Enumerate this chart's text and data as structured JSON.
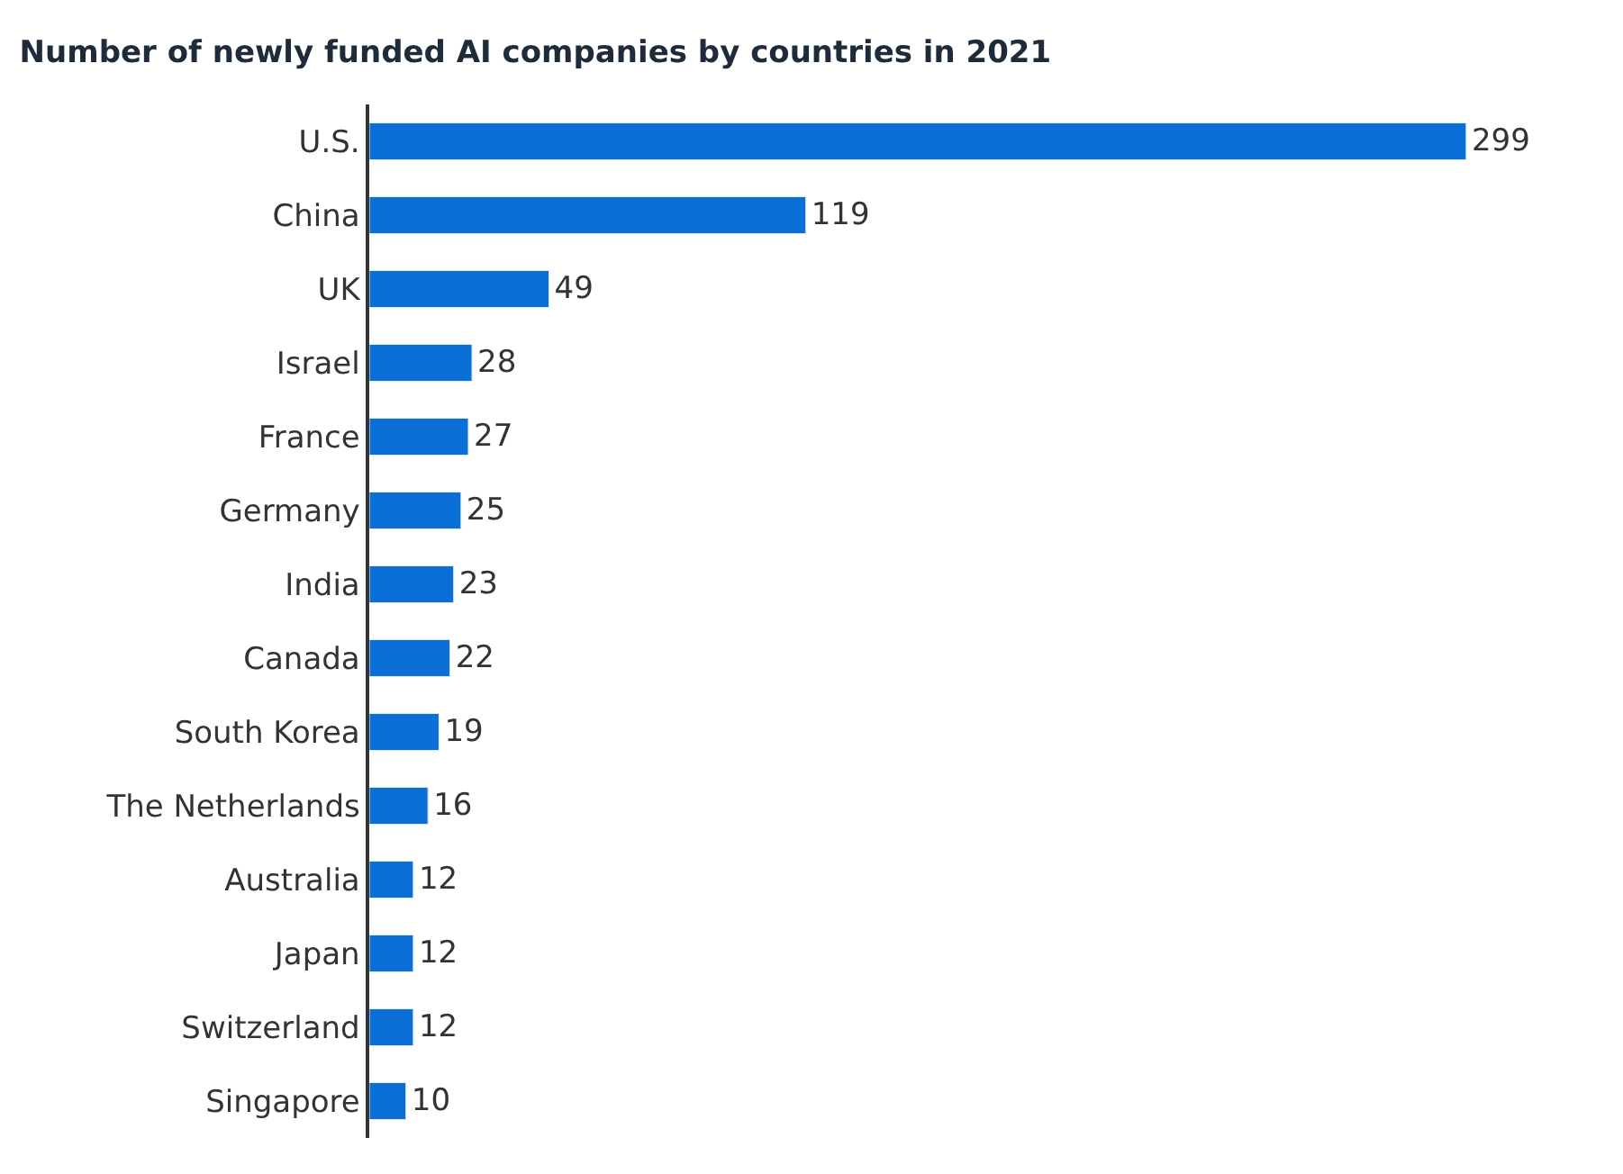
{
  "chart_data": {
    "type": "bar",
    "orientation": "horizontal",
    "title": "Number of newly funded AI companies by countries in 2021",
    "categories": [
      "U.S.",
      "China",
      "UK",
      "Israel",
      "France",
      "Germany",
      "India",
      "Canada",
      "South Korea",
      "The Netherlands",
      "Australia",
      "Japan",
      "Switzerland",
      "Singapore"
    ],
    "values": [
      299,
      119,
      49,
      28,
      27,
      25,
      23,
      22,
      19,
      16,
      12,
      12,
      12,
      10
    ],
    "color": "#0a6fd6",
    "data_labels": true,
    "legend": false,
    "tick_labels": "y"
  }
}
